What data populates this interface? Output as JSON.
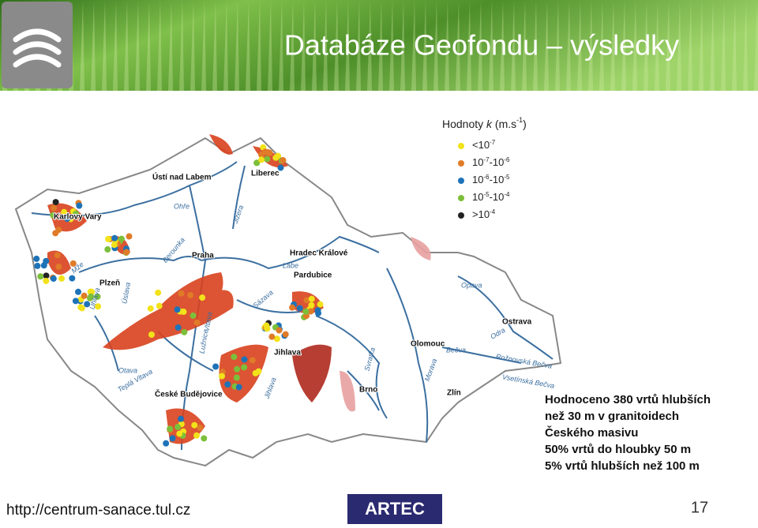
{
  "header": {
    "title": "Databáze Geofondu – výsledky"
  },
  "legend": {
    "title": [
      "Hodnoty ",
      "k",
      " (m.s",
      "-1",
      ")"
    ],
    "items": [
      {
        "color": "#f2e21a",
        "label": [
          "<10",
          "-7"
        ]
      },
      {
        "color": "#e07b28",
        "label": [
          "10",
          "-7",
          "-10",
          "-6"
        ]
      },
      {
        "color": "#1e73b8",
        "label": [
          "10",
          "-6",
          "-10",
          "-5"
        ]
      },
      {
        "color": "#7cbf3a",
        "label": [
          "10",
          "-5",
          "-10",
          "-4"
        ]
      },
      {
        "color": "#222222",
        "label": [
          ">10",
          "-4"
        ]
      }
    ]
  },
  "cities": [
    "Ústí nad Labem",
    "Liberec",
    "Karlovy Vary",
    "Praha",
    "Hradec Králové",
    "Pardubice",
    "Plzeň",
    "Jihlava",
    "České Budějovice",
    "Brno",
    "Olomouc",
    "Ostrava",
    "Zlín"
  ],
  "rivers": [
    "Ohře",
    "Jizera",
    "Labe",
    "Vltava",
    "Berounka",
    "Mže",
    "Úhlava",
    "Úslava",
    "Sázava",
    "Lužnice",
    "Otava",
    "Jihlava",
    "Svratka",
    "Morava",
    "Bečva",
    "Odra",
    "Opava",
    "Rožnovská Bečva",
    "Vsetínská Bečva",
    "Teplá Vltava"
  ],
  "note": [
    "Hodnoceno 380 vrtů hlubších",
    "než 30 m v granitoidech",
    "Českého masivu",
    "50% vrtů do hloubky 50 m",
    "5% vrtů hlubších než 100 m"
  ],
  "footer": {
    "url": "http://centrum-sanace.tul.cz",
    "logo": "ARTEC",
    "page": "17"
  }
}
